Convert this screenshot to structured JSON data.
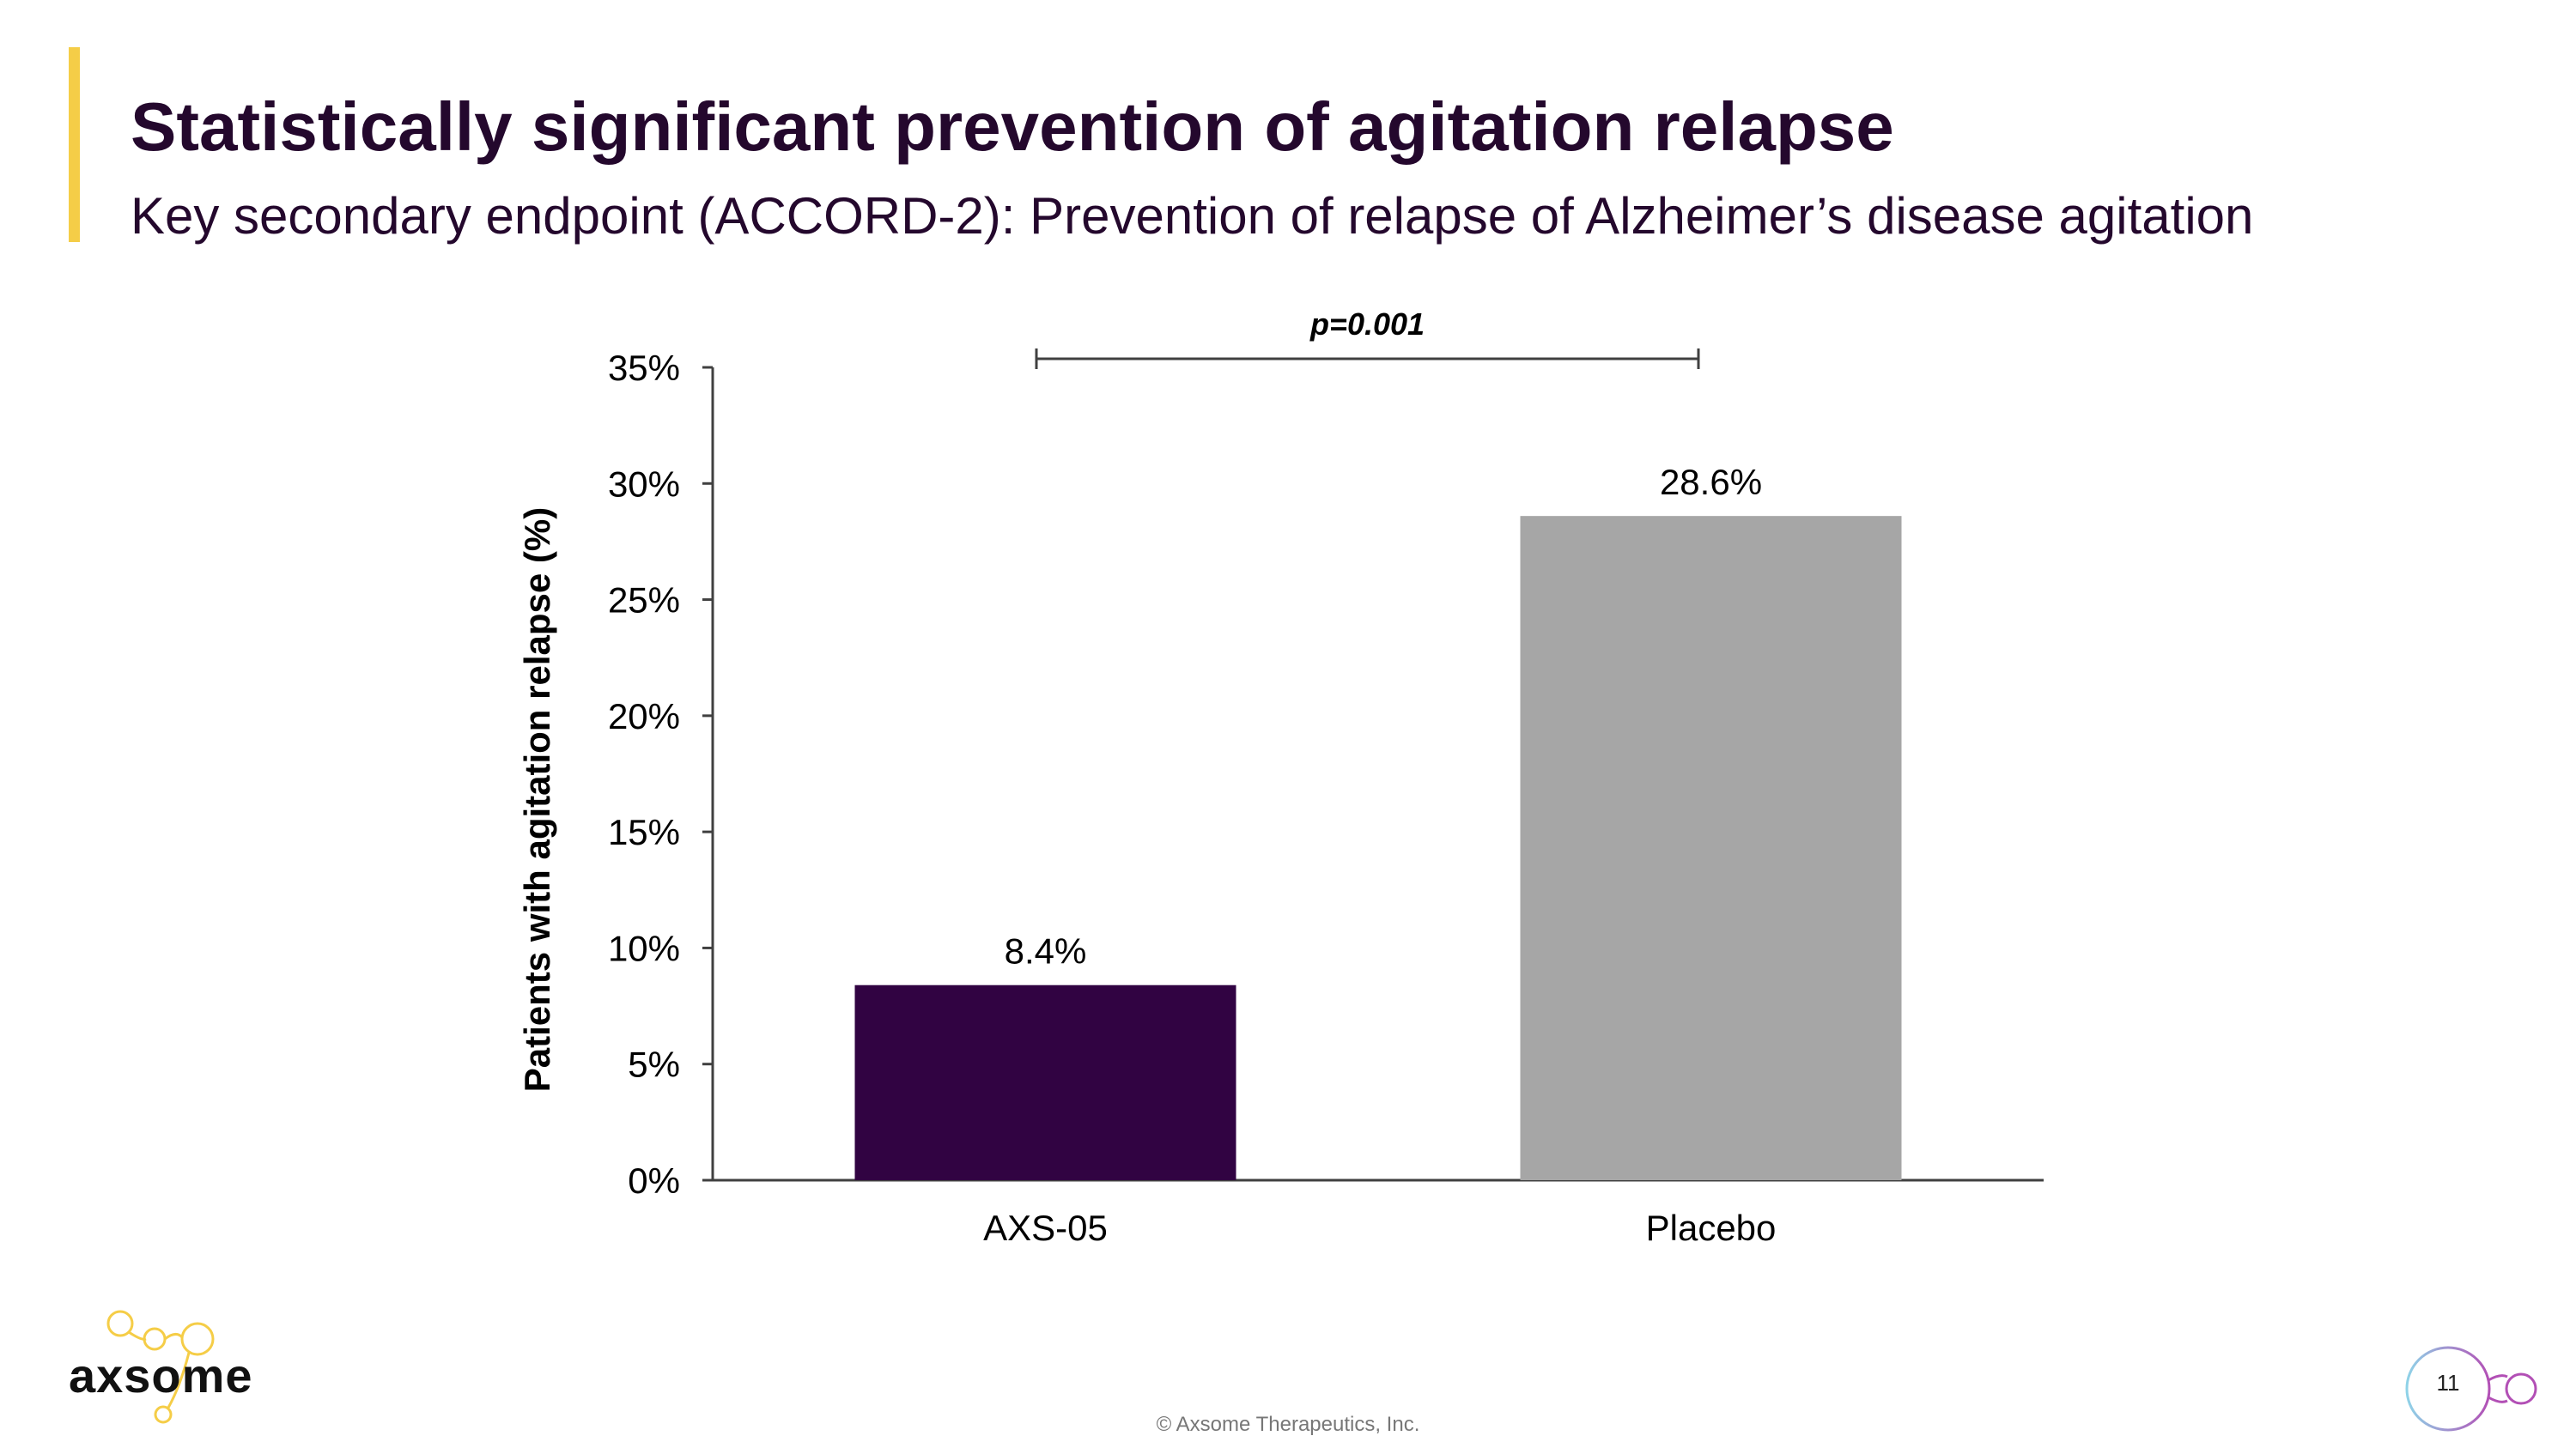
{
  "slide": {
    "title": "Statistically significant prevention of agitation relapse",
    "subtitle": "Key secondary endpoint (ACCORD-2): Prevention of relapse of Alzheimer’s disease agitation",
    "page_number": "11",
    "copyright": "© Axsome Therapeutics, Inc.",
    "logo_text": "axsome",
    "accent_color": "#f5cd47"
  },
  "chart_data": {
    "type": "bar",
    "categories": [
      "AXS-05",
      "Placebo"
    ],
    "values": [
      8.4,
      28.6
    ],
    "value_labels": [
      "8.4%",
      "28.6%"
    ],
    "colors": [
      "#310342",
      "#a6a6a6"
    ],
    "ylabel": "Patients with agitation relapse (%)",
    "xlabel": "",
    "ylim": [
      0,
      35
    ],
    "yticks": [
      0,
      5,
      10,
      15,
      20,
      25,
      30,
      35
    ],
    "ytick_labels": [
      "0%",
      "5%",
      "10%",
      "15%",
      "20%",
      "25%",
      "30%",
      "35%"
    ],
    "grid": false,
    "legend": "none",
    "annotation": {
      "text": "p=0.001",
      "between": [
        "AXS-05",
        "Placebo"
      ]
    }
  }
}
